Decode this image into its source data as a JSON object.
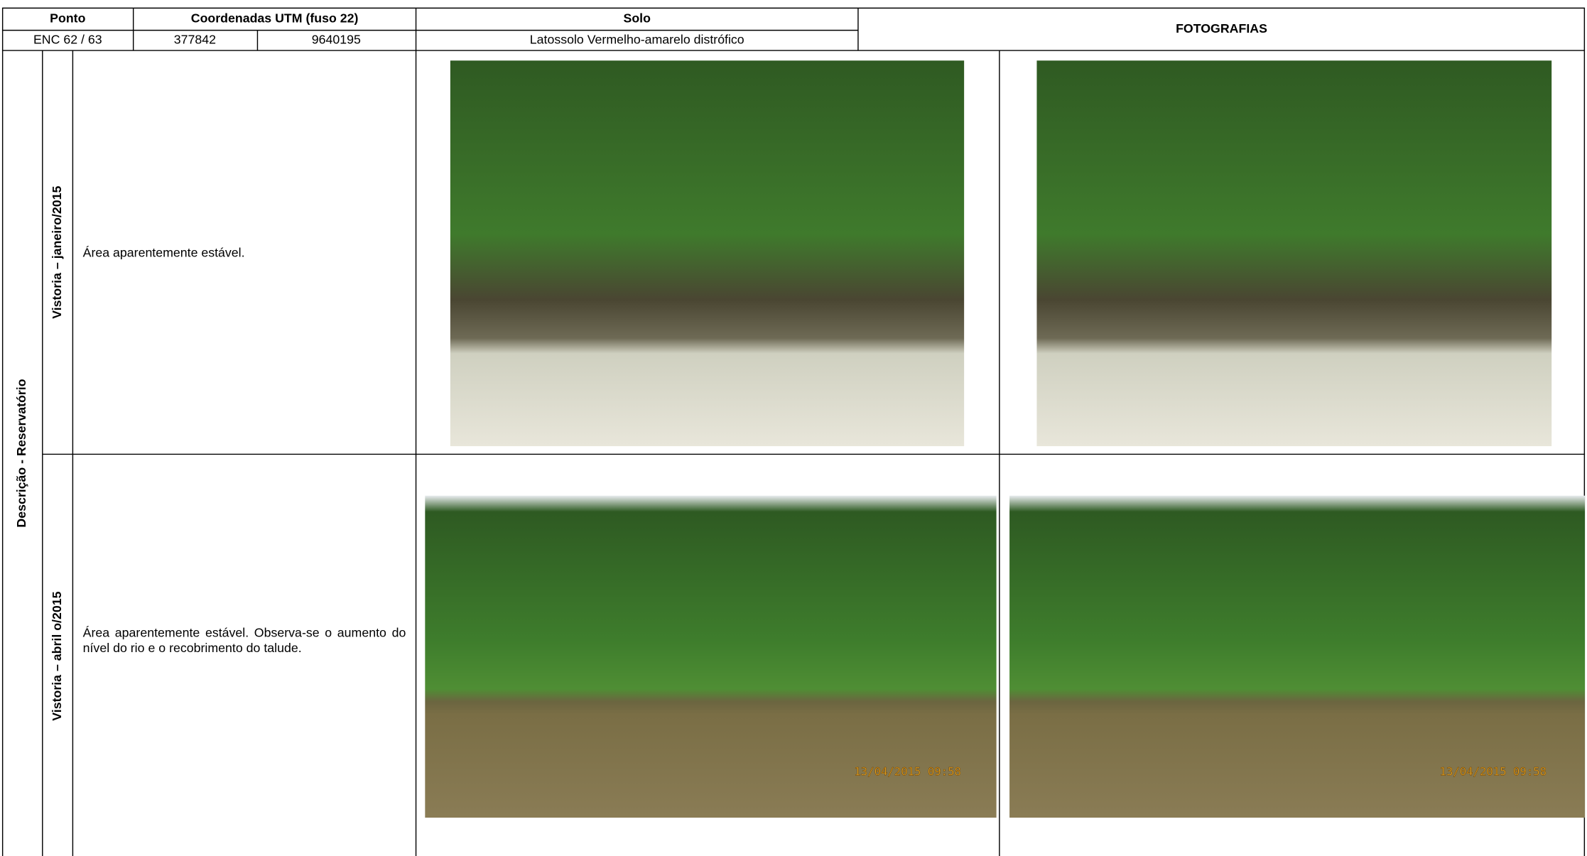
{
  "header": {
    "ponto": "Ponto",
    "coordenadas": "Coordenadas UTM (fuso 22)",
    "solo": "Solo",
    "fotografias": "FOTOGRAFIAS"
  },
  "record": {
    "ponto": "ENC 62 / 63",
    "utm_e": "377842",
    "utm_n": "9640195",
    "solo": "Latossolo Vermelho-amarelo distrófico"
  },
  "section": "Descrição - Reservatório",
  "visits": [
    {
      "label": "Vistoria – janeiro/2015",
      "description": "Área aparentemente estável."
    },
    {
      "label": "Vistoria – abril o/2015",
      "description": "Área aparentemente estável. Observa-se o aumento do nível do rio e o recobrimento do talude.",
      "photo_timestamps": [
        "13/04/2015 09:58",
        "13/04/2015 09:58"
      ]
    }
  ]
}
